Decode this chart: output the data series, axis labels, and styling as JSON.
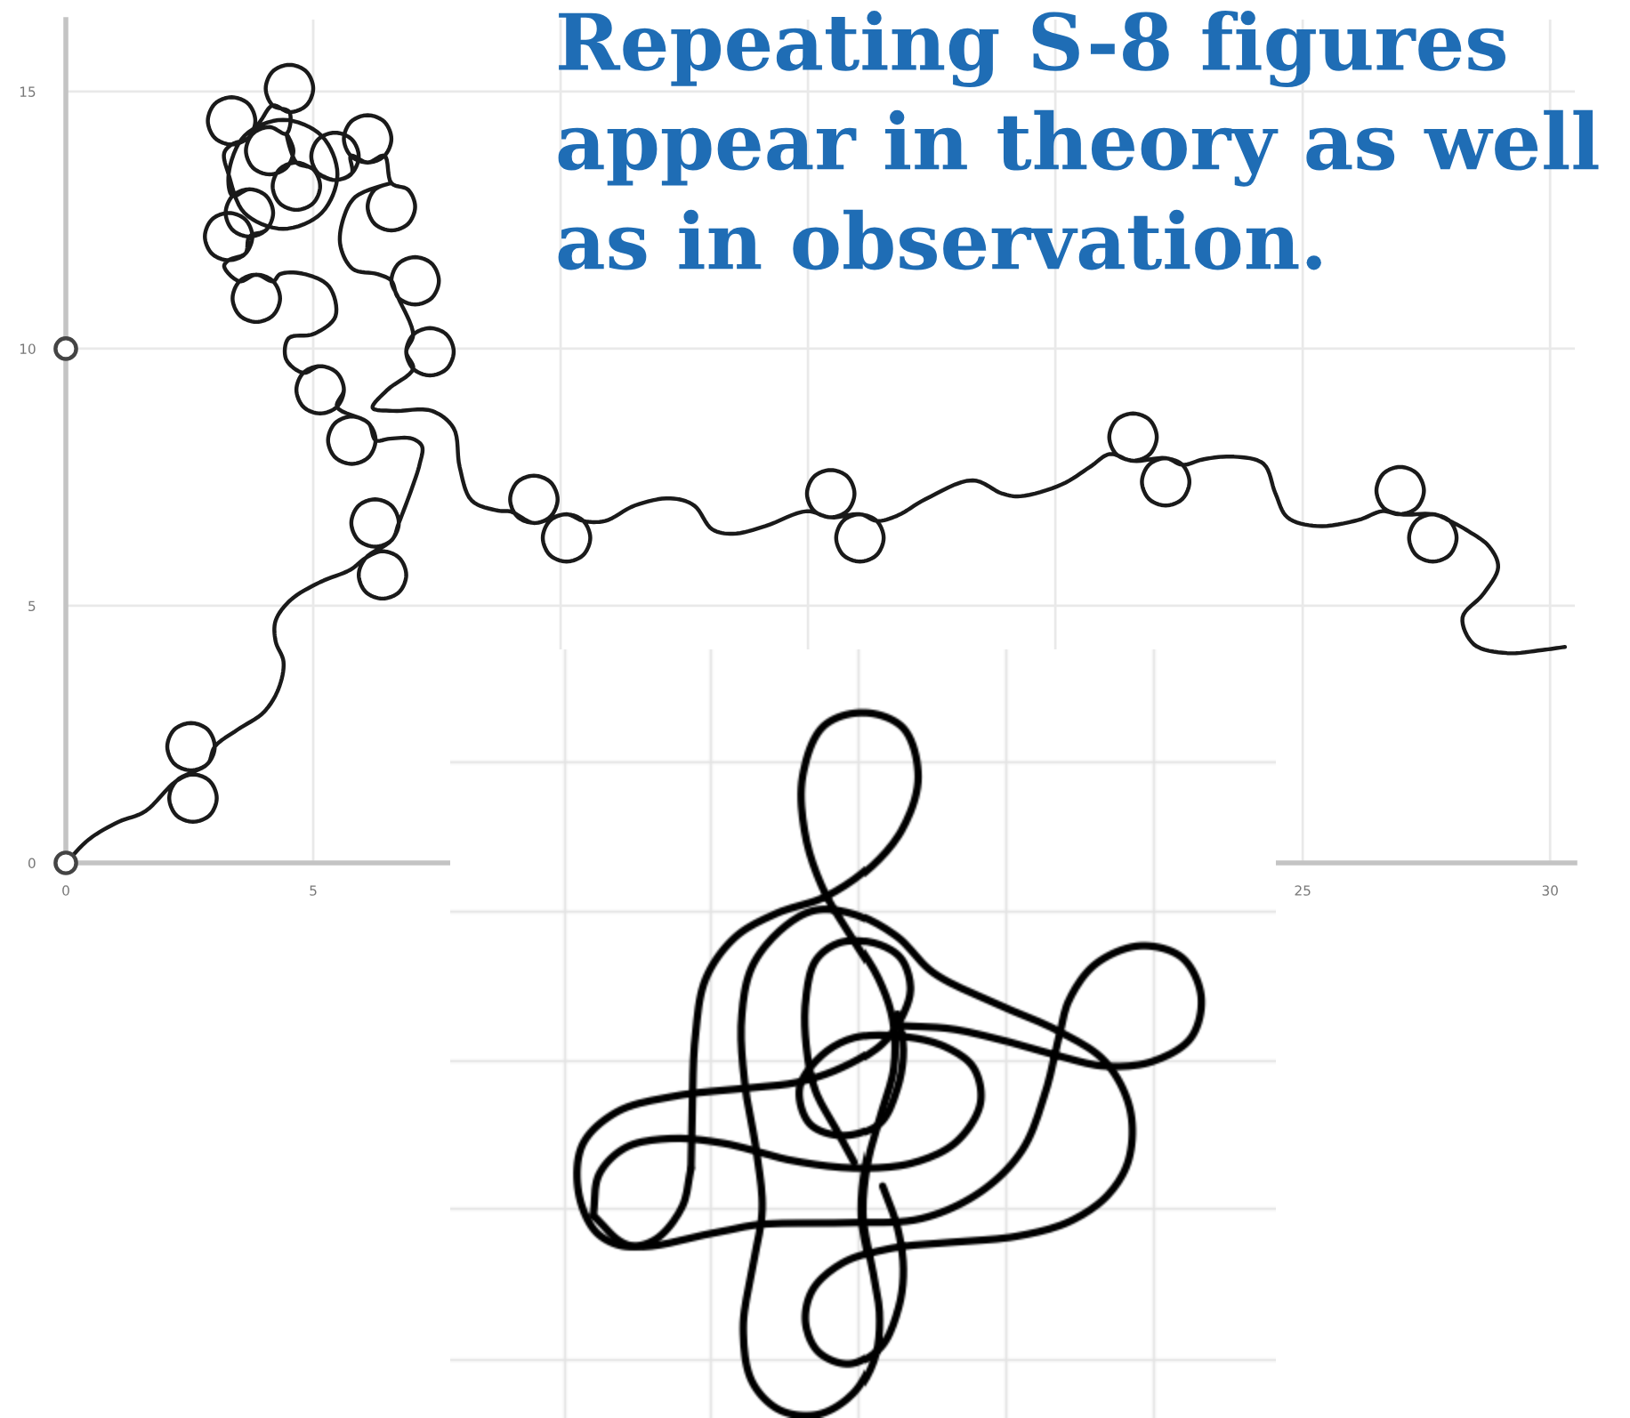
{
  "chart_data": {
    "type": "line",
    "title": "Repeating S-8 figures\nappear in theory as well\nas in observation.",
    "xlim": [
      0,
      30.5
    ],
    "ylim": [
      0,
      16.4
    ],
    "xticks": [
      0,
      5,
      {
        "value": 10,
        "label": null
      },
      {
        "value": 15,
        "label": null
      },
      {
        "value": 20,
        "label": null
      },
      25,
      30
    ],
    "yticks": [
      0,
      5,
      10,
      15
    ],
    "grid": true,
    "series": [
      {
        "color": "#1a1a1a",
        "x": [
          0,
          0.47,
          1.07,
          1.6,
          2.23,
          2.57,
          2.91,
          3.05,
          2.91,
          2.57,
          2.23,
          2.09,
          2.23,
          2.87,
          3.01,
          2.87,
          2.53,
          2.19,
          2.05,
          2.19,
          2.53,
          2.87,
          3.01,
          3.47,
          4.0,
          4.3,
          4.4,
          4.24,
          4.24,
          4.54,
          5.14,
          5.75,
          6.06,
          6.4,
          6.74,
          6.88,
          6.74,
          6.4,
          6.06,
          5.92,
          6.06,
          6.59,
          6.73,
          6.59,
          6.25,
          5.91,
          5.77,
          5.91,
          6.25,
          6.59,
          6.73,
          7.0,
          7.15,
          7.2,
          7.0,
          6.55,
          6.26,
          6.12,
          5.78,
          5.44,
          5.3,
          5.44,
          5.78,
          6.12,
          6.26,
          6.12,
          5.48,
          5.62,
          5.48,
          5.14,
          4.8,
          4.66,
          4.8,
          5.14,
          5.48,
          5.62,
          5.48,
          5.14,
          4.8,
          4.45,
          4.5,
          5.02,
          5.45,
          5.32,
          4.78,
          4.33,
          4.19,
          3.85,
          3.51,
          3.37,
          3.51,
          3.85,
          4.19,
          4.33,
          4.19,
          3.85,
          3.51,
          3.2,
          3.29,
          3.63,
          3.77,
          3.63,
          3.29,
          2.95,
          2.81,
          2.95,
          3.29,
          3.63,
          3.71,
          4.05,
          4.19,
          4.05,
          3.71,
          3.37,
          3.23,
          3.37,
          3.71,
          4.05,
          4.19,
          4.05,
          3.71,
          3.37,
          3.29,
          3.61,
          4.39,
          5.17,
          5.49,
          5.17,
          4.39,
          3.61,
          3.29,
          3.2,
          3.35,
          3.69,
          3.83,
          3.69,
          3.35,
          3.01,
          2.87,
          3.01,
          3.35,
          3.69,
          3.95,
          4.18,
          4.52,
          4.86,
          5.0,
          4.86,
          4.52,
          4.18,
          4.04,
          4.18,
          4.52,
          4.46,
          4.12,
          3.78,
          3.64,
          3.78,
          4.12,
          4.46,
          4.6,
          4.46,
          4.66,
          5.0,
          5.14,
          5.0,
          4.66,
          4.32,
          4.18,
          4.32,
          4.66,
          5.0,
          5.1,
          5.44,
          5.78,
          5.92,
          5.78,
          5.44,
          5.1,
          4.96,
          5.1,
          5.44,
          5.78,
          5.76,
          6.1,
          6.44,
          6.58,
          6.44,
          6.1,
          5.76,
          5.62,
          5.76,
          6.1,
          6.44,
          6.58,
          6.92,
          7.06,
          6.92,
          6.58,
          6.24,
          6.1,
          6.24,
          6.58,
          5.85,
          5.6,
          5.55,
          5.8,
          6.3,
          6.58,
          6.72,
          7.06,
          7.4,
          7.54,
          7.4,
          7.06,
          6.72,
          6.58,
          6.72,
          7.02,
          6.88,
          7.02,
          7.36,
          7.7,
          7.84,
          7.7,
          7.36,
          7.02,
          6.88,
          7.02,
          6.5,
          6.2,
          6.6,
          7.4,
          7.84,
          7.96,
          8.2,
          8.74,
          9.0,
          9.46,
          9.8,
          9.94,
          9.8,
          9.46,
          9.12,
          8.98,
          9.12,
          9.46,
          10.12,
          10.46,
          10.6,
          10.46,
          10.12,
          9.78,
          9.64,
          9.78,
          10.12,
          10.46,
          10.9,
          11.5,
          12.22,
          12.7,
          13.06,
          13.48,
          14.14,
          14.98,
          15.46,
          15.8,
          15.94,
          15.8,
          15.46,
          15.12,
          14.98,
          15.12,
          15.46,
          16.05,
          16.39,
          16.53,
          16.39,
          16.05,
          15.71,
          15.57,
          15.71,
          16.05,
          16.39,
          16.8,
          17.37,
          18.33,
          18.93,
          19.29,
          20.13,
          20.7,
          21.1,
          21.57,
          21.91,
          22.05,
          21.91,
          21.57,
          21.23,
          21.09,
          21.23,
          21.57,
          22.23,
          22.57,
          22.71,
          22.57,
          22.23,
          21.89,
          21.75,
          21.89,
          22.23,
          22.57,
          23.0,
          23.61,
          24.21,
          24.45,
          24.69,
          25.29,
          26.13,
          26.61,
          26.97,
          27.31,
          27.45,
          27.31,
          26.97,
          26.63,
          26.49,
          26.63,
          26.97,
          27.63,
          27.97,
          28.11,
          27.97,
          27.63,
          27.29,
          27.15,
          27.29,
          27.63,
          27.97,
          28.35,
          28.77,
          28.95,
          28.65,
          28.23,
          28.46,
          29.13,
          29.84,
          30.3
        ],
        "values": [
          0,
          0.46,
          0.8,
          1.0,
          1.59,
          1.72,
          1.59,
          1.26,
          0.93,
          0.8,
          0.93,
          1.26,
          1.59,
          1.93,
          2.26,
          2.59,
          2.72,
          2.59,
          2.26,
          1.93,
          1.8,
          1.93,
          2.26,
          2.59,
          2.93,
          3.39,
          3.91,
          4.31,
          4.71,
          5.11,
          5.46,
          5.7,
          5.93,
          6.06,
          5.93,
          5.6,
          5.27,
          5.14,
          5.27,
          5.6,
          5.93,
          6.28,
          6.61,
          6.94,
          7.07,
          6.94,
          6.61,
          6.28,
          6.15,
          6.28,
          6.61,
          7.3,
          7.75,
          8.1,
          8.25,
          8.25,
          8.22,
          8.55,
          8.68,
          8.55,
          8.22,
          7.89,
          7.76,
          7.89,
          8.22,
          8.55,
          8.87,
          9.2,
          9.53,
          9.66,
          9.53,
          9.2,
          8.87,
          8.74,
          8.87,
          9.2,
          9.53,
          9.66,
          9.53,
          9.8,
          10.2,
          10.29,
          10.63,
          11.21,
          11.46,
          11.45,
          11.31,
          11.44,
          11.31,
          10.98,
          10.65,
          10.52,
          10.65,
          10.98,
          11.31,
          11.44,
          11.31,
          11.6,
          11.72,
          11.85,
          12.18,
          12.51,
          12.64,
          12.51,
          12.18,
          11.85,
          11.72,
          11.85,
          12.18,
          12.31,
          12.64,
          12.97,
          13.1,
          12.97,
          12.64,
          12.31,
          12.18,
          12.31,
          12.64,
          12.97,
          13.1,
          12.97,
          13.39,
          14.14,
          14.45,
          14.14,
          13.39,
          12.64,
          12.33,
          12.64,
          13.39,
          13.8,
          13.97,
          14.1,
          14.43,
          14.76,
          14.89,
          14.76,
          14.43,
          14.1,
          13.97,
          14.1,
          14.45,
          14.73,
          14.6,
          14.73,
          15.06,
          15.39,
          15.52,
          15.39,
          15.06,
          14.73,
          14.6,
          14.18,
          14.31,
          14.18,
          13.85,
          13.52,
          13.39,
          13.52,
          13.85,
          14.18,
          13.62,
          13.49,
          13.16,
          12.83,
          12.7,
          12.83,
          13.16,
          13.49,
          13.62,
          13.49,
          13.41,
          13.28,
          13.41,
          13.74,
          14.07,
          14.2,
          14.07,
          13.74,
          13.41,
          13.28,
          13.41,
          13.75,
          13.62,
          13.75,
          14.08,
          14.41,
          14.54,
          14.41,
          14.08,
          13.75,
          13.62,
          13.75,
          13.22,
          13.09,
          12.76,
          12.43,
          12.3,
          12.43,
          12.76,
          13.09,
          13.22,
          12.95,
          12.5,
          12.0,
          11.55,
          11.45,
          11.32,
          10.99,
          10.86,
          10.99,
          11.32,
          11.65,
          11.78,
          11.65,
          11.32,
          10.99,
          10.27,
          9.94,
          9.61,
          9.48,
          9.61,
          9.94,
          10.27,
          10.4,
          10.27,
          9.94,
          9.61,
          9.2,
          8.85,
          8.79,
          8.79,
          8.45,
          7.7,
          7.05,
          6.85,
          6.83,
          6.61,
          6.74,
          7.07,
          7.4,
          7.53,
          7.4,
          7.07,
          6.74,
          6.61,
          6.78,
          6.65,
          6.32,
          5.99,
          5.86,
          5.99,
          6.32,
          6.65,
          6.78,
          6.65,
          6.65,
          6.95,
          7.09,
          6.95,
          6.49,
          6.4,
          6.55,
          6.84,
          6.72,
          6.85,
          7.18,
          7.51,
          7.64,
          7.51,
          7.18,
          6.85,
          6.72,
          6.78,
          6.65,
          6.32,
          5.99,
          5.86,
          5.99,
          6.32,
          6.65,
          6.78,
          6.65,
          6.75,
          7.07,
          7.44,
          7.18,
          7.13,
          7.36,
          7.7,
          7.95,
          7.82,
          7.95,
          8.28,
          8.61,
          8.74,
          8.61,
          8.28,
          7.95,
          7.82,
          7.87,
          7.74,
          7.41,
          7.08,
          6.95,
          7.08,
          7.41,
          7.74,
          7.87,
          7.74,
          7.85,
          7.9,
          7.76,
          7.18,
          6.72,
          6.55,
          6.67,
          6.84,
          6.78,
          6.91,
          7.24,
          7.57,
          7.7,
          7.57,
          7.24,
          6.91,
          6.78,
          6.78,
          6.65,
          6.32,
          5.99,
          5.86,
          5.99,
          6.32,
          6.65,
          6.78,
          6.65,
          6.45,
          6.15,
          5.75,
          5.23,
          4.77,
          4.25,
          4.08,
          4.14,
          4.2
        ]
      },
      {
        "type": "scatter",
        "color": "#444444",
        "marker": "circle",
        "x": [
          0,
          0
        ],
        "values": [
          0,
          10
        ]
      }
    ]
  }
}
